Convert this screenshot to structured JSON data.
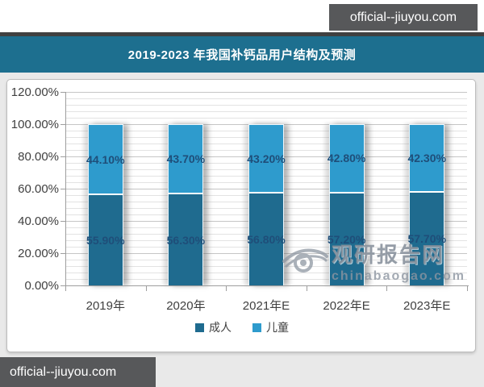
{
  "watermarks": {
    "top_right": "official--jiuyou.com",
    "bottom_left": "official--jiuyou.com",
    "center_name": "观研报告网",
    "center_domain": "chinabaogao.com"
  },
  "title_bar": {
    "text": "2019-2023 年我国补钙品用户结构及预测",
    "bg_color": "#1d6f8f"
  },
  "chart_data": {
    "type": "bar",
    "stacked": true,
    "title": "2019-2023 年我国补钙品用户结构及预测",
    "categories": [
      "2019年",
      "2020年",
      "2021年E",
      "2022年E",
      "2023年E"
    ],
    "series": [
      {
        "name": "成人",
        "color": "#1f6b8f",
        "values": [
          55.9,
          56.3,
          56.8,
          57.2,
          57.7
        ],
        "labels": [
          "55.90%",
          "56.30%",
          "56.80%",
          "57.20%",
          "57.70%"
        ]
      },
      {
        "name": "儿童",
        "color": "#2e9bcd",
        "values": [
          44.1,
          43.7,
          43.2,
          42.8,
          42.3
        ],
        "labels": [
          "44.10%",
          "43.70%",
          "43.20%",
          "42.80%",
          "42.30%"
        ]
      }
    ],
    "xlabel": "",
    "ylabel": "",
    "ylim": [
      0,
      120
    ],
    "y_major_unit": 20,
    "y_minor_unit": 4,
    "y_tick_labels": [
      "0.00%",
      "20.00%",
      "40.00%",
      "60.00%",
      "80.00%",
      "100.00%",
      "120.00%"
    ],
    "grid": true,
    "legend_position": "bottom",
    "data_label_color": "#1f4e79"
  }
}
